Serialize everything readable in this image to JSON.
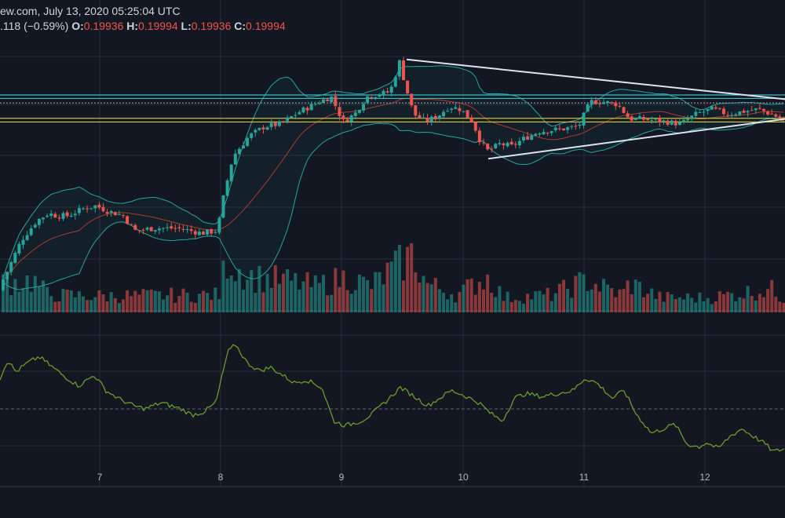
{
  "header": {
    "source_line": "ew.com, July 13, 2020 05:25:04 UTC",
    "change": ".118 (−0.59%)",
    "o_label": "O:",
    "o_value": "0.19936",
    "h_label": "H:",
    "h_value": "0.19994",
    "l_label": "L:",
    "l_value": "0.19936",
    "c_label": "C:",
    "c_value": "0.19994"
  },
  "colors": {
    "background": "#131722",
    "grid": "#2a2e39",
    "up": "#26a69a",
    "down": "#ef5350",
    "bollinger_band": "#26a69a",
    "bollinger_basis": "#b03a2e",
    "rsi_line": "#6b9b2a",
    "support_resistance_cyan": "#3fb8c2",
    "support_resistance_yellow": "#d6c74a",
    "trendline": "#e0e3eb",
    "axis_text": "#b2b5be"
  },
  "chart_data": {
    "type": "candlestick",
    "x_axis": {
      "tick_labels": [
        "7",
        "8",
        "9",
        "10",
        "11",
        "12"
      ]
    },
    "grid": true,
    "price_series": {
      "name": "",
      "anchors": [
        [
          0,
          0.162
        ],
        [
          10,
          0.165
        ],
        [
          30,
          0.172
        ],
        [
          50,
          0.176
        ],
        [
          65,
          0.1775
        ],
        [
          75,
          0.177
        ],
        [
          90,
          0.177
        ],
        [
          110,
          0.1785
        ],
        [
          125,
          0.179
        ],
        [
          140,
          0.178
        ],
        [
          160,
          0.177
        ],
        [
          175,
          0.174
        ],
        [
          200,
          0.1745
        ],
        [
          230,
          0.1745
        ],
        [
          260,
          0.1735
        ],
        [
          280,
          0.174
        ],
        [
          288,
          0.181
        ],
        [
          300,
          0.189
        ],
        [
          320,
          0.193
        ],
        [
          340,
          0.195
        ],
        [
          360,
          0.1955
        ],
        [
          385,
          0.198
        ],
        [
          410,
          0.2
        ],
        [
          425,
          0.201
        ],
        [
          440,
          0.196
        ],
        [
          455,
          0.1975
        ],
        [
          470,
          0.201
        ],
        [
          485,
          0.2015
        ],
        [
          500,
          0.202
        ],
        [
          512,
          0.208
        ],
        [
          520,
          0.203
        ],
        [
          530,
          0.1975
        ],
        [
          545,
          0.196
        ],
        [
          560,
          0.197
        ],
        [
          575,
          0.199
        ],
        [
          590,
          0.1985
        ],
        [
          605,
          0.196
        ],
        [
          615,
          0.192
        ],
        [
          625,
          0.19
        ],
        [
          640,
          0.1915
        ],
        [
          655,
          0.191
        ],
        [
          670,
          0.1925
        ],
        [
          690,
          0.194
        ],
        [
          720,
          0.1945
        ],
        [
          740,
          0.195
        ],
        [
          755,
          0.2
        ],
        [
          770,
          0.2
        ],
        [
          790,
          0.1995
        ],
        [
          805,
          0.1965
        ],
        [
          820,
          0.1965
        ],
        [
          850,
          0.196
        ],
        [
          870,
          0.1955
        ],
        [
          890,
          0.1975
        ],
        [
          910,
          0.1985
        ],
        [
          930,
          0.1975
        ],
        [
          950,
          0.198
        ],
        [
          970,
          0.1985
        ],
        [
          985,
          0.1975
        ],
        [
          1000,
          0.1965
        ]
      ]
    },
    "volume_series": {
      "name": "",
      "anchors": [
        [
          0,
          0.5
        ],
        [
          40,
          0.55
        ],
        [
          60,
          0.3
        ],
        [
          120,
          0.28
        ],
        [
          280,
          0.3
        ],
        [
          285,
          1.0
        ],
        [
          295,
          0.8
        ],
        [
          320,
          0.6
        ],
        [
          360,
          0.55
        ],
        [
          400,
          0.45
        ],
        [
          440,
          0.6
        ],
        [
          470,
          0.45
        ],
        [
          510,
          0.85
        ],
        [
          525,
          1.0
        ],
        [
          540,
          0.5
        ],
        [
          580,
          0.3
        ],
        [
          610,
          0.55
        ],
        [
          620,
          0.6
        ],
        [
          640,
          0.25
        ],
        [
          700,
          0.3
        ],
        [
          745,
          0.55
        ],
        [
          790,
          0.3
        ],
        [
          800,
          0.5
        ],
        [
          840,
          0.25
        ],
        [
          900,
          0.25
        ],
        [
          980,
          0.4
        ],
        [
          1000,
          0.2
        ]
      ]
    },
    "rsi_series": {
      "name": "",
      "anchors": [
        [
          0,
          58
        ],
        [
          10,
          70
        ],
        [
          20,
          62
        ],
        [
          35,
          68
        ],
        [
          50,
          72
        ],
        [
          65,
          66
        ],
        [
          80,
          60
        ],
        [
          100,
          53
        ],
        [
          120,
          60
        ],
        [
          135,
          50
        ],
        [
          150,
          45
        ],
        [
          170,
          40
        ],
        [
          185,
          38
        ],
        [
          205,
          42
        ],
        [
          230,
          38
        ],
        [
          245,
          34
        ],
        [
          260,
          36
        ],
        [
          275,
          42
        ],
        [
          290,
          75
        ],
        [
          300,
          80
        ],
        [
          315,
          68
        ],
        [
          330,
          63
        ],
        [
          345,
          65
        ],
        [
          360,
          60
        ],
        [
          375,
          55
        ],
        [
          390,
          57
        ],
        [
          410,
          52
        ],
        [
          425,
          30
        ],
        [
          440,
          27
        ],
        [
          460,
          30
        ],
        [
          475,
          35
        ],
        [
          490,
          42
        ],
        [
          510,
          52
        ],
        [
          525,
          47
        ],
        [
          545,
          40
        ],
        [
          560,
          45
        ],
        [
          575,
          50
        ],
        [
          590,
          47
        ],
        [
          610,
          42
        ],
        [
          625,
          35
        ],
        [
          640,
          30
        ],
        [
          655,
          45
        ],
        [
          670,
          48
        ],
        [
          690,
          46
        ],
        [
          710,
          48
        ],
        [
          730,
          50
        ],
        [
          745,
          58
        ],
        [
          760,
          55
        ],
        [
          780,
          45
        ],
        [
          795,
          50
        ],
        [
          810,
          35
        ],
        [
          830,
          22
        ],
        [
          845,
          25
        ],
        [
          860,
          28
        ],
        [
          875,
          15
        ],
        [
          890,
          13
        ],
        [
          900,
          16
        ],
        [
          915,
          12
        ],
        [
          930,
          20
        ],
        [
          945,
          25
        ],
        [
          960,
          20
        ],
        [
          975,
          15
        ],
        [
          985,
          10
        ],
        [
          1000,
          12
        ]
      ]
    },
    "horizontal_levels": [
      {
        "value": 0.20135,
        "color": "cyan"
      },
      {
        "value": 0.20065,
        "color": "cyan"
      },
      {
        "value": 0.19975,
        "color": "dotted"
      },
      {
        "value": 0.19665,
        "color": "yellow"
      },
      {
        "value": 0.1959,
        "color": "yellow"
      }
    ],
    "trendlines": [
      {
        "from": [
          518,
          0.2085
        ],
        "to": [
          1000,
          0.2005
        ]
      },
      {
        "from": [
          622,
          0.1885
        ],
        "to": [
          1000,
          0.1965
        ]
      }
    ]
  }
}
